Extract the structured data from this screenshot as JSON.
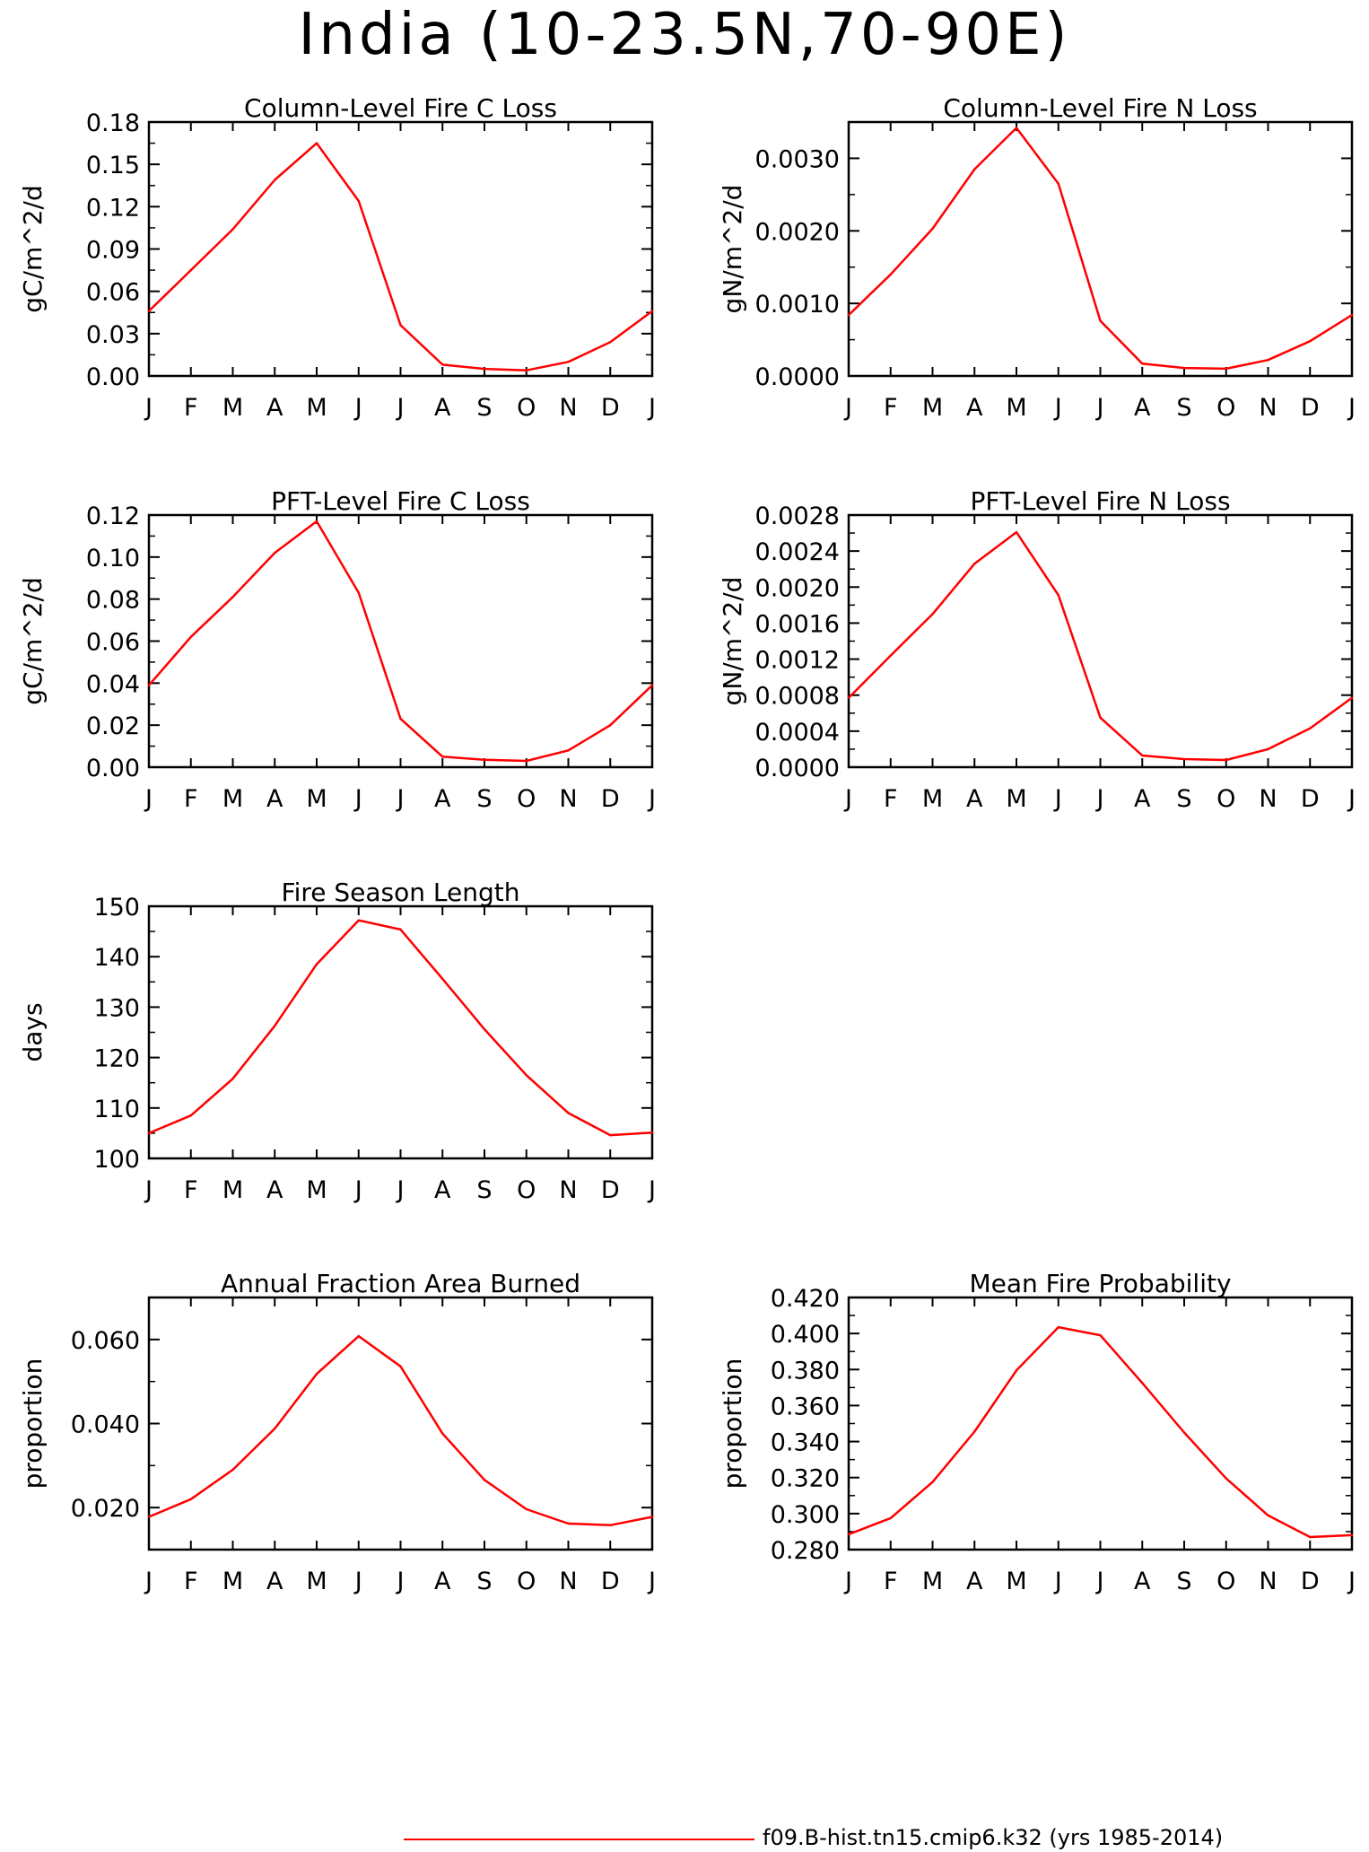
{
  "title": "India (10-23.5N,70-90E)",
  "legend": {
    "label": "f09.B-hist.tn15.cmip6.k32 (yrs 1985-2014)",
    "color": "#ff0000"
  },
  "chart_data": [
    {
      "type": "line",
      "title": "Column-Level Fire C Loss",
      "ylabel": "gC/m^2/d",
      "categories": [
        "J",
        "F",
        "M",
        "A",
        "M",
        "J",
        "J",
        "A",
        "S",
        "O",
        "N",
        "D",
        "J"
      ],
      "ylim": [
        0,
        0.18
      ],
      "yticks": [
        "0.00",
        "0.03",
        "0.06",
        "0.09",
        "0.12",
        "0.15",
        "0.18"
      ],
      "values": [
        0.046,
        0.075,
        0.104,
        0.139,
        0.165,
        0.124,
        0.036,
        0.008,
        0.005,
        0.004,
        0.01,
        0.024,
        0.046
      ],
      "color": "#ff0000"
    },
    {
      "type": "line",
      "title": "Column-Level Fire N Loss",
      "ylabel": "gN/m^2/d",
      "categories": [
        "J",
        "F",
        "M",
        "A",
        "M",
        "J",
        "J",
        "A",
        "S",
        "O",
        "N",
        "D",
        "J"
      ],
      "ylim": [
        0,
        0.0035
      ],
      "yticks": [
        "0.0000",
        "0.0010",
        "0.0020",
        "0.0030"
      ],
      "values": [
        0.00084,
        0.0014,
        0.00203,
        0.00285,
        0.00342,
        0.00265,
        0.00076,
        0.00017,
        0.00011,
        0.0001,
        0.00022,
        0.00048,
        0.00084
      ],
      "color": "#ff0000"
    },
    {
      "type": "line",
      "title": "PFT-Level Fire C Loss",
      "ylabel": "gC/m^2/d",
      "categories": [
        "J",
        "F",
        "M",
        "A",
        "M",
        "J",
        "J",
        "A",
        "S",
        "O",
        "N",
        "D",
        "J"
      ],
      "ylim": [
        0,
        0.12
      ],
      "yticks": [
        "0.00",
        "0.02",
        "0.04",
        "0.06",
        "0.08",
        "0.10",
        "0.12"
      ],
      "values": [
        0.039,
        0.062,
        0.081,
        0.102,
        0.117,
        0.083,
        0.023,
        0.005,
        0.0035,
        0.003,
        0.008,
        0.02,
        0.039
      ],
      "color": "#ff0000"
    },
    {
      "type": "line",
      "title": "PFT-Level Fire N Loss",
      "ylabel": "gN/m^2/d",
      "categories": [
        "J",
        "F",
        "M",
        "A",
        "M",
        "J",
        "J",
        "A",
        "S",
        "O",
        "N",
        "D",
        "J"
      ],
      "ylim": [
        0,
        0.0028
      ],
      "yticks": [
        "0.0000",
        "0.0004",
        "0.0008",
        "0.0012",
        "0.0016",
        "0.0020",
        "0.0024",
        "0.0028"
      ],
      "values": [
        0.00077,
        0.00124,
        0.0017,
        0.00226,
        0.00261,
        0.00191,
        0.00055,
        0.00013,
        9e-05,
        8e-05,
        0.0002,
        0.00043,
        0.00077
      ],
      "color": "#ff0000"
    },
    {
      "type": "line",
      "title": "Fire Season Length",
      "ylabel": "days",
      "categories": [
        "J",
        "F",
        "M",
        "A",
        "M",
        "J",
        "J",
        "A",
        "S",
        "O",
        "N",
        "D",
        "J"
      ],
      "ylim": [
        100,
        150
      ],
      "yticks": [
        "100",
        "110",
        "120",
        "130",
        "140",
        "150"
      ],
      "values": [
        105.0,
        108.5,
        115.8,
        126.3,
        138.5,
        147.2,
        145.4,
        135.6,
        125.6,
        116.5,
        109.0,
        104.6,
        105.1
      ],
      "color": "#ff0000"
    },
    {
      "type": "line",
      "title": "Annual Fraction Area Burned",
      "ylabel": "proportion",
      "categories": [
        "J",
        "F",
        "M",
        "A",
        "M",
        "J",
        "J",
        "A",
        "S",
        "O",
        "N",
        "D",
        "J"
      ],
      "ylim": [
        0.01,
        0.07
      ],
      "yticks": [
        "0.020",
        "0.040",
        "0.060"
      ],
      "values": [
        0.0178,
        0.022,
        0.029,
        0.0388,
        0.0518,
        0.0608,
        0.0536,
        0.0376,
        0.0266,
        0.0196,
        0.0162,
        0.0158,
        0.0178
      ],
      "color": "#ff0000"
    },
    {
      "type": "line",
      "title": "Mean Fire Probability",
      "ylabel": "proportion",
      "categories": [
        "J",
        "F",
        "M",
        "A",
        "M",
        "J",
        "J",
        "A",
        "S",
        "O",
        "N",
        "D",
        "J"
      ],
      "ylim": [
        0.28,
        0.42
      ],
      "yticks": [
        "0.280",
        "0.300",
        "0.320",
        "0.340",
        "0.360",
        "0.380",
        "0.400",
        "0.420"
      ],
      "values": [
        0.2885,
        0.2975,
        0.3175,
        0.3455,
        0.3795,
        0.4035,
        0.399,
        0.3725,
        0.345,
        0.3195,
        0.299,
        0.287,
        0.288
      ],
      "color": "#ff0000"
    }
  ]
}
